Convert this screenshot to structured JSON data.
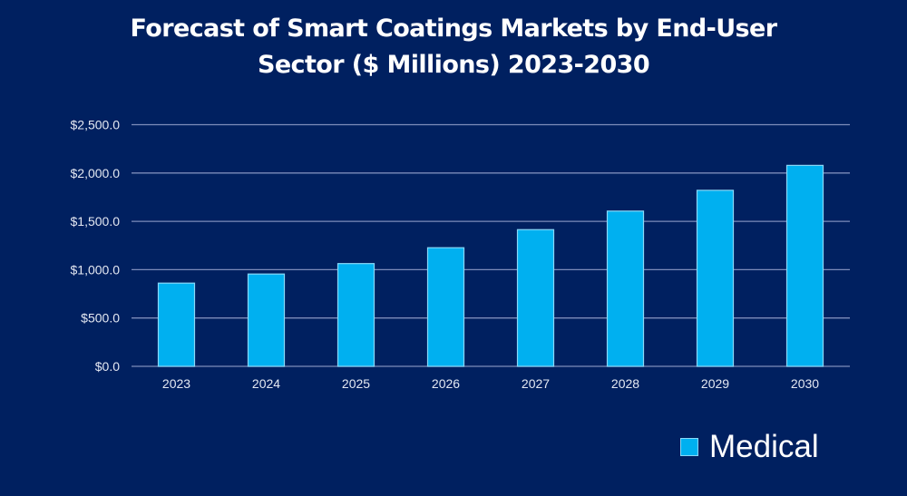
{
  "chart_data": {
    "type": "bar",
    "title": "Forecast of Smart Coatings Markets by End-User Sector ($ Millions) 2023-2030",
    "title_lines": [
      "Forecast of Smart Coatings Markets by End-User",
      "Sector ($ Millions) 2023-2030"
    ],
    "xlabel": "",
    "ylabel": "",
    "categories": [
      "2023",
      "2024",
      "2025",
      "2026",
      "2027",
      "2028",
      "2029",
      "2030"
    ],
    "series": [
      {
        "name": "Medical",
        "color": "#00B0F0",
        "values": [
          861,
          955,
          1063,
          1227,
          1414,
          1606,
          1821,
          2079
        ]
      }
    ],
    "ylim": [
      0,
      2500
    ],
    "yticks": [
      0,
      500,
      1000,
      1500,
      2000,
      2500
    ],
    "ytick_labels": [
      "$0.0",
      "$500.0",
      "$1,000.0",
      "$1,500.0",
      "$2,000.0",
      "$2,500.0"
    ],
    "grid": true,
    "legend_position": "bottom-right"
  },
  "colors": {
    "background": "#002060",
    "gridline": "#7D8CBA",
    "bar_outline": "#8AD8F7"
  }
}
